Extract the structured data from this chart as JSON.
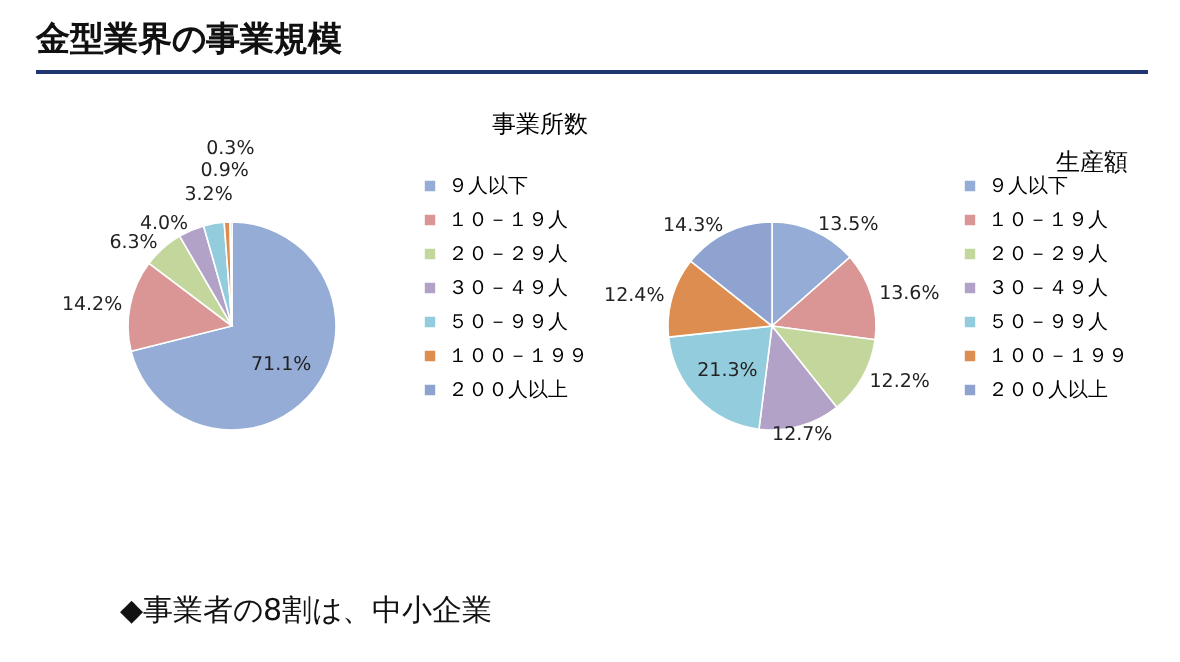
{
  "chart_data": [
    {
      "type": "pie",
      "title": "事業所数",
      "annotations": [
        "金型業界の事業規模",
        "◆事業者の8割は、中小企業"
      ],
      "legend": "right",
      "categories": [
        "９人以下",
        "１０－１９人",
        "２０－２９人",
        "３０－４９人",
        "５０－９９人",
        "１００－１９９",
        "２００人以上"
      ],
      "values": [
        71.1,
        14.2,
        6.3,
        4.0,
        3.2,
        0.9,
        0.3
      ],
      "value_labels": [
        "71.1%",
        "14.2%",
        "6.3%",
        "4.0%",
        "3.2%",
        "0.9%",
        "0.3%"
      ],
      "colors": [
        "#95acd6",
        "#d99694",
        "#c3d69b",
        "#b3a2c7",
        "#93cddd",
        "#dc8d4f",
        "#8ea3cf"
      ]
    },
    {
      "type": "pie",
      "title": "生産額",
      "legend": "right",
      "categories": [
        "９人以下",
        "１０－１９人",
        "２０－２９人",
        "３０－４９人",
        "５０－９９人",
        "１００－１９９",
        "２００人以上"
      ],
      "values": [
        13.5,
        13.6,
        12.2,
        12.7,
        21.3,
        12.4,
        14.3
      ],
      "value_labels": [
        "13.5%",
        "13.6%",
        "12.2%",
        "12.7%",
        "21.3%",
        "12.4%",
        "14.3%"
      ],
      "colors": [
        "#95acd6",
        "#d99694",
        "#c3d69b",
        "#b3a2c7",
        "#93cddd",
        "#dc8d4f",
        "#8ea3cf"
      ]
    }
  ]
}
